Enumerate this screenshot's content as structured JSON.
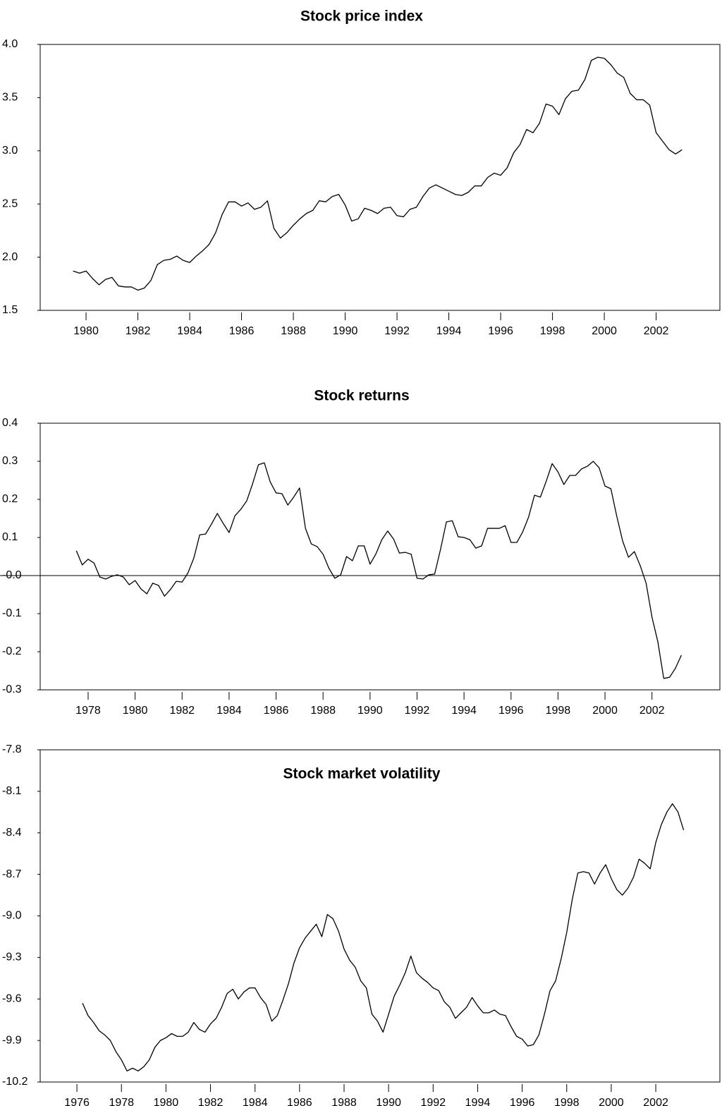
{
  "chart_data": [
    {
      "type": "line",
      "title": "Stock price index",
      "color": "#000000",
      "grid": false,
      "xlim": [
        1978.23,
        2004.46
      ],
      "ylim": [
        1.5,
        4.0
      ],
      "xticks": [
        1980,
        1982,
        1984,
        1986,
        1988,
        1990,
        1992,
        1994,
        1996,
        1998,
        2000,
        2002
      ],
      "yticks": [
        {
          "value": 1.5,
          "label": "1.5"
        },
        {
          "value": 2,
          "label": "2.0"
        },
        2.5,
        {
          "value": 3,
          "label": "3.0"
        },
        3.5,
        {
          "value": 4,
          "label": "4.0"
        }
      ],
      "x": [
        1979.5,
        1979.75,
        1980,
        1980.25,
        1980.5,
        1980.75,
        1981,
        1981.25,
        1981.5,
        1981.75,
        1982,
        1982.25,
        1982.5,
        1982.75,
        1983,
        1983.25,
        1983.5,
        1983.75,
        1984,
        1984.25,
        1984.5,
        1984.75,
        1985,
        1985.25,
        1985.5,
        1985.75,
        1986,
        1986.25,
        1986.5,
        1986.75,
        1987,
        1987.25,
        1987.5,
        1987.75,
        1988,
        1988.25,
        1988.5,
        1988.75,
        1989,
        1989.25,
        1989.5,
        1989.75,
        1990,
        1990.25,
        1990.5,
        1990.75,
        1991,
        1991.25,
        1991.5,
        1991.75,
        1992,
        1992.25,
        1992.5,
        1992.75,
        1993,
        1993.25,
        1993.5,
        1993.75,
        1994,
        1994.25,
        1994.5,
        1994.75,
        1995,
        1995.25,
        1995.5,
        1995.75,
        1996,
        1996.25,
        1996.5,
        1996.75,
        1997,
        1997.25,
        1997.5,
        1997.75,
        1998,
        1998.25,
        1998.5,
        1998.75,
        1999,
        1999.25,
        1999.5,
        1999.75,
        2000,
        2000.25,
        2000.5,
        2000.75,
        2001,
        2001.25,
        2001.5,
        2001.75,
        2002,
        2002.25,
        2002.5,
        2002.75,
        2003
      ],
      "values": [
        1.87,
        1.85,
        1.87,
        1.8,
        1.74,
        1.79,
        1.81,
        1.73,
        1.72,
        1.72,
        1.69,
        1.71,
        1.78,
        1.93,
        1.97,
        1.98,
        2.01,
        1.97,
        1.95,
        2.01,
        2.06,
        2.12,
        2.23,
        2.4,
        2.52,
        2.52,
        2.48,
        2.51,
        2.45,
        2.47,
        2.53,
        2.27,
        2.18,
        2.23,
        2.3,
        2.36,
        2.41,
        2.44,
        2.53,
        2.52,
        2.57,
        2.59,
        2.49,
        2.34,
        2.36,
        2.46,
        2.44,
        2.41,
        2.46,
        2.47,
        2.39,
        2.38,
        2.45,
        2.47,
        2.57,
        2.65,
        2.68,
        2.65,
        2.62,
        2.59,
        2.58,
        2.61,
        2.67,
        2.67,
        2.75,
        2.79,
        2.77,
        2.84,
        2.98,
        3.06,
        3.2,
        3.17,
        3.26,
        3.44,
        3.42,
        3.34,
        3.49,
        3.56,
        3.57,
        3.67,
        3.85,
        3.88,
        3.87,
        3.81,
        3.73,
        3.69,
        3.54,
        3.48,
        3.48,
        3.43,
        3.17,
        3.09,
        3.01,
        2.97,
        3.01
      ]
    },
    {
      "type": "line",
      "title": "Stock returns",
      "color": "#000000",
      "grid": false,
      "reference_line": 0,
      "xlim": [
        1975.96,
        2004.89
      ],
      "ylim": [
        -0.3,
        0.4
      ],
      "xticks": [
        1978,
        1980,
        1982,
        1984,
        1986,
        1988,
        1990,
        1992,
        1994,
        1996,
        1998,
        2000,
        2002
      ],
      "yticks": [
        -0.3,
        -0.2,
        -0.1,
        {
          "value": 0,
          "label": "-0.0"
        },
        0.1,
        0.2,
        0.3,
        0.4
      ],
      "x": [
        1977.5,
        1977.75,
        1978,
        1978.25,
        1978.5,
        1978.75,
        1979,
        1979.25,
        1979.5,
        1979.75,
        1980,
        1980.25,
        1980.5,
        1980.75,
        1981,
        1981.25,
        1981.5,
        1981.75,
        1982,
        1982.25,
        1982.5,
        1982.75,
        1983,
        1983.25,
        1983.5,
        1983.75,
        1984,
        1984.25,
        1984.5,
        1984.75,
        1985,
        1985.25,
        1985.5,
        1985.75,
        1986,
        1986.25,
        1986.5,
        1986.75,
        1987,
        1987.25,
        1987.5,
        1987.75,
        1988,
        1988.25,
        1988.5,
        1988.75,
        1989,
        1989.25,
        1989.5,
        1989.75,
        1990,
        1990.25,
        1990.5,
        1990.75,
        1991,
        1991.25,
        1991.5,
        1991.75,
        1992,
        1992.25,
        1992.5,
        1992.75,
        1993,
        1993.25,
        1993.5,
        1993.75,
        1994,
        1994.25,
        1994.5,
        1994.75,
        1995,
        1995.25,
        1995.5,
        1995.75,
        1996,
        1996.25,
        1996.5,
        1996.75,
        1997,
        1997.25,
        1997.5,
        1997.75,
        1998,
        1998.25,
        1998.5,
        1998.75,
        1999,
        1999.25,
        1999.5,
        1999.75,
        2000,
        2000.25,
        2000.5,
        2000.75,
        2001,
        2001.25,
        2001.5,
        2001.75,
        2002,
        2002.25,
        2002.5,
        2002.75,
        2003,
        2003.25
      ],
      "values": [
        0.065,
        0.028,
        0.043,
        0.033,
        -0.004,
        -0.009,
        -0.002,
        0.002,
        -0.004,
        -0.024,
        -0.013,
        -0.035,
        -0.048,
        -0.02,
        -0.026,
        -0.054,
        -0.037,
        -0.015,
        -0.017,
        0.007,
        0.046,
        0.107,
        0.109,
        0.135,
        0.163,
        0.137,
        0.113,
        0.157,
        0.174,
        0.196,
        0.241,
        0.291,
        0.296,
        0.246,
        0.217,
        0.215,
        0.185,
        0.206,
        0.23,
        0.124,
        0.083,
        0.076,
        0.056,
        0.019,
        -0.007,
        0.002,
        0.05,
        0.039,
        0.078,
        0.078,
        0.03,
        0.057,
        0.094,
        0.117,
        0.096,
        0.059,
        0.061,
        0.056,
        -0.007,
        -0.009,
        0.002,
        0.004,
        0.069,
        0.141,
        0.144,
        0.102,
        0.1,
        0.094,
        0.072,
        0.078,
        0.124,
        0.124,
        0.124,
        0.131,
        0.087,
        0.087,
        0.115,
        0.154,
        0.211,
        0.206,
        0.248,
        0.294,
        0.272,
        0.239,
        0.263,
        0.263,
        0.28,
        0.287,
        0.3,
        0.283,
        0.235,
        0.228,
        0.156,
        0.091,
        0.048,
        0.063,
        0.026,
        -0.02,
        -0.109,
        -0.174,
        -0.27,
        -0.267,
        -0.243,
        -0.209
      ]
    },
    {
      "type": "line",
      "title": "Stock market volatility",
      "color": "#000000",
      "grid": false,
      "xlim": [
        1974.35,
        2004.88
      ],
      "ylim": [
        -10.2,
        -7.8
      ],
      "xticks": [
        1976,
        1978,
        1980,
        1982,
        1984,
        1986,
        1988,
        1990,
        1992,
        1994,
        1996,
        1998,
        2000,
        2002
      ],
      "yticks": [
        -10.2,
        -9.9,
        -9.6,
        -9.3,
        {
          "value": -9,
          "label": "-9.0"
        },
        -8.7,
        -8.4,
        -8.1,
        -7.8
      ],
      "x": [
        1976.25,
        1976.5,
        1976.75,
        1977,
        1977.25,
        1977.5,
        1977.75,
        1978,
        1978.25,
        1978.5,
        1978.75,
        1979,
        1979.25,
        1979.5,
        1979.75,
        1980,
        1980.25,
        1980.5,
        1980.75,
        1981,
        1981.25,
        1981.5,
        1981.75,
        1982,
        1982.25,
        1982.5,
        1982.75,
        1983,
        1983.25,
        1983.5,
        1983.75,
        1984,
        1984.25,
        1984.5,
        1984.75,
        1985,
        1985.25,
        1985.5,
        1985.75,
        1986,
        1986.25,
        1986.5,
        1986.75,
        1987,
        1987.25,
        1987.5,
        1987.75,
        1988,
        1988.25,
        1988.5,
        1988.75,
        1989,
        1989.25,
        1989.5,
        1989.75,
        1990,
        1990.25,
        1990.5,
        1990.75,
        1991,
        1991.25,
        1991.5,
        1991.75,
        1992,
        1992.25,
        1992.5,
        1992.75,
        1993,
        1993.25,
        1993.5,
        1993.75,
        1994,
        1994.25,
        1994.5,
        1994.75,
        1995,
        1995.25,
        1995.5,
        1995.75,
        1996,
        1996.25,
        1996.5,
        1996.75,
        1997,
        1997.25,
        1997.5,
        1997.75,
        1998,
        1998.25,
        1998.5,
        1998.75,
        1999,
        1999.25,
        1999.5,
        1999.75,
        2000,
        2000.25,
        2000.5,
        2000.75,
        2001,
        2001.25,
        2001.5,
        2001.75,
        2002,
        2002.25,
        2002.5,
        2002.75,
        2003,
        2003.25
      ],
      "values": [
        -9.63,
        -9.72,
        -9.77,
        -9.83,
        -9.86,
        -9.9,
        -9.98,
        -10.04,
        -10.12,
        -10.1,
        -10.12,
        -10.09,
        -10.04,
        -9.95,
        -9.9,
        -9.88,
        -9.85,
        -9.87,
        -9.87,
        -9.84,
        -9.77,
        -9.82,
        -9.84,
        -9.78,
        -9.74,
        -9.66,
        -9.56,
        -9.53,
        -9.6,
        -9.55,
        -9.52,
        -9.52,
        -9.59,
        -9.64,
        -9.76,
        -9.72,
        -9.61,
        -9.49,
        -9.34,
        -9.23,
        -9.16,
        -9.11,
        -9.06,
        -9.15,
        -8.99,
        -9.02,
        -9.11,
        -9.24,
        -9.32,
        -9.37,
        -9.47,
        -9.52,
        -9.71,
        -9.76,
        -9.84,
        -9.71,
        -9.58,
        -9.5,
        -9.41,
        -9.29,
        -9.41,
        -9.45,
        -9.48,
        -9.52,
        -9.54,
        -9.62,
        -9.66,
        -9.74,
        -9.7,
        -9.66,
        -9.59,
        -9.65,
        -9.7,
        -9.7,
        -9.68,
        -9.71,
        -9.72,
        -9.8,
        -9.87,
        -9.89,
        -9.94,
        -9.93,
        -9.86,
        -9.71,
        -9.54,
        -9.47,
        -9.31,
        -9.12,
        -8.88,
        -8.69,
        -8.68,
        -8.69,
        -8.77,
        -8.69,
        -8.63,
        -8.73,
        -8.81,
        -8.85,
        -8.8,
        -8.72,
        -8.59,
        -8.62,
        -8.66,
        -8.47,
        -8.34,
        -8.25,
        -8.19,
        -8.25,
        -8.38
      ]
    }
  ]
}
